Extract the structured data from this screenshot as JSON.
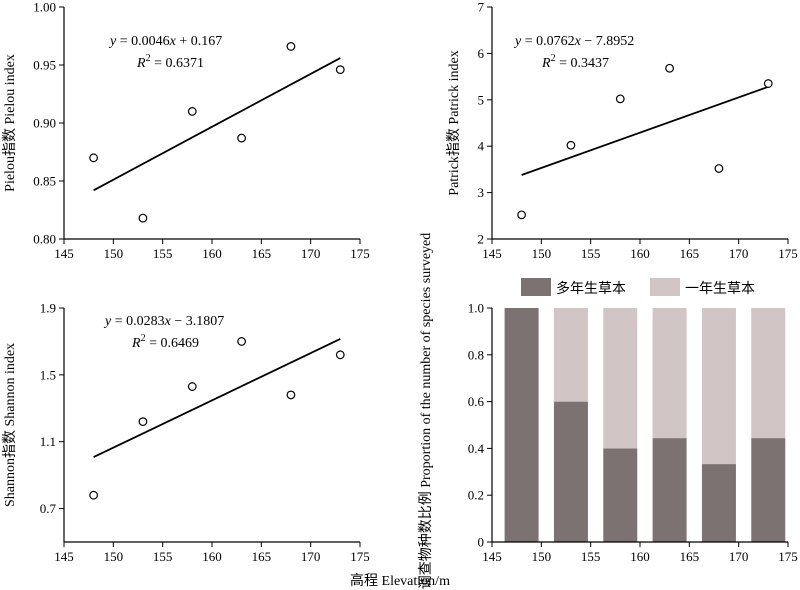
{
  "figure": {
    "common_xlabel": "高程 Elevation/m"
  },
  "chart_data": [
    {
      "id": "pielou",
      "type": "scatter",
      "title": "",
      "xlabel": "",
      "ylabel": "Pielou指数 Pielou index",
      "xlim": [
        145,
        175
      ],
      "ylim": [
        0.8,
        1.0
      ],
      "xticks": [
        145,
        150,
        155,
        160,
        165,
        170,
        175
      ],
      "yticks": [
        0.8,
        0.85,
        0.9,
        0.95,
        1.0
      ],
      "ytick_labels": [
        "0.80",
        "0.85",
        "0.90",
        "0.95",
        "1.00"
      ],
      "grid": false,
      "x": [
        148,
        153,
        158,
        163,
        168,
        173
      ],
      "y": [
        0.87,
        0.818,
        0.91,
        0.887,
        0.966,
        0.946
      ],
      "fit": {
        "slope": 0.0046,
        "intercept": 0.167,
        "x_range": [
          148,
          173
        ],
        "endpoints_y": [
          0.842,
          0.956
        ]
      },
      "equation": "y = 0.0046x + 0.167",
      "r2": "R2 = 0.6371"
    },
    {
      "id": "patrick",
      "type": "scatter",
      "title": "",
      "xlabel": "",
      "ylabel": "Patrick指数 Patrick index",
      "xlim": [
        145,
        175
      ],
      "ylim": [
        2,
        7
      ],
      "xticks": [
        145,
        150,
        155,
        160,
        165,
        170,
        175
      ],
      "yticks": [
        2,
        3,
        4,
        5,
        6,
        7
      ],
      "ytick_labels": [
        "2",
        "3",
        "4",
        "5",
        "6",
        "7"
      ],
      "grid": false,
      "x": [
        148,
        153,
        158,
        163,
        168,
        173
      ],
      "y": [
        2.52,
        4.02,
        5.02,
        5.68,
        3.52,
        5.35
      ],
      "fit": {
        "slope": 0.0762,
        "intercept": -7.8952,
        "x_range": [
          148,
          173
        ],
        "endpoints_y": [
          3.38,
          5.28
        ]
      },
      "equation": "y = 0.0762x − 7.8952",
      "r2": "R2 = 0.3437"
    },
    {
      "id": "shannon",
      "type": "scatter",
      "title": "",
      "xlabel": "",
      "ylabel": "Shannon指数 Shannon index",
      "xlim": [
        145,
        175
      ],
      "ylim": [
        0.5,
        1.9
      ],
      "xticks": [
        145,
        150,
        155,
        160,
        165,
        170,
        175
      ],
      "yticks": [
        0.7,
        1.1,
        1.5,
        1.9
      ],
      "ytick_labels": [
        "0.7",
        "1.1",
        "1.5",
        "1.9"
      ],
      "grid": false,
      "x": [
        148,
        153,
        158,
        163,
        168,
        173
      ],
      "y": [
        0.78,
        1.22,
        1.43,
        1.7,
        1.38,
        1.62
      ],
      "fit": {
        "slope": 0.0283,
        "intercept": -3.1807,
        "x_range": [
          148,
          173
        ],
        "endpoints_y": [
          1.008,
          1.715
        ]
      },
      "equation": "y = 0.0283x − 3.1807",
      "r2": "R2 = 0.6469"
    },
    {
      "id": "proportion",
      "type": "bar",
      "stacked": true,
      "title": "",
      "xlabel": "",
      "ylabel": "占所调查物种数比例 Proportion of the number of species surveyed",
      "xlim": [
        145,
        175
      ],
      "ylim": [
        0,
        1.0
      ],
      "xticks": [
        145,
        150,
        155,
        160,
        165,
        170,
        175
      ],
      "yticks": [
        0,
        0.2,
        0.4,
        0.6,
        0.8,
        1.0
      ],
      "ytick_labels": [
        "0",
        "0.2",
        "0.4",
        "0.6",
        "0.8",
        "1.0"
      ],
      "grid": false,
      "legend_position": "top",
      "x": [
        148,
        153,
        158,
        163,
        168,
        173
      ],
      "series": [
        {
          "name": "多年生草本",
          "color": "#7d7272",
          "values": [
            1.0,
            0.6,
            0.4,
            0.444,
            0.333,
            0.444
          ]
        },
        {
          "name": "一年生草本",
          "color": "#d1c5c5",
          "values": [
            0.0,
            0.4,
            0.6,
            0.556,
            0.667,
            0.556
          ]
        }
      ]
    }
  ]
}
